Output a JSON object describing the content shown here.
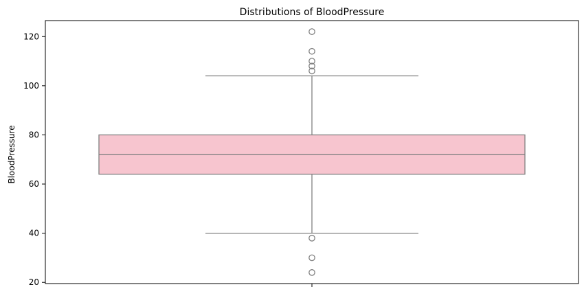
{
  "chart_data": {
    "type": "box",
    "title": "Distributions of BloodPressure",
    "xlabel": "",
    "ylabel": "BloodPressure",
    "ylim": [
      19.5,
      126.5
    ],
    "yticks": [
      20,
      40,
      60,
      80,
      100,
      120
    ],
    "grid": false,
    "box": {
      "q1": 64,
      "median": 72,
      "q3": 80,
      "whisker_low": 40,
      "whisker_high": 104,
      "outliers": [
        122,
        114,
        110,
        108,
        106,
        38,
        30,
        24
      ],
      "fill_color": "#f7c5cf",
      "line_color": "#808080"
    }
  }
}
